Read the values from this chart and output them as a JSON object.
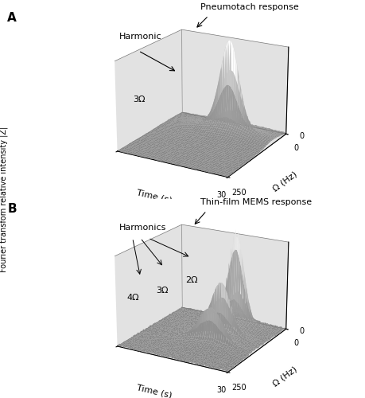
{
  "panel_A_label": "A",
  "panel_B_label": "B",
  "title_A": "Pneumotach response",
  "title_B": "Thin-film MEMS response",
  "xlabel": "Time (s)",
  "ylabel_freq": "Ω (Hz)",
  "zlabel": "Fourier transfom relative intensity |Z|",
  "time_max": 30,
  "freq_max": 250,
  "annotation_A_harmonic": "Harmonic",
  "annotation_A_3omega": "3Ω",
  "annotation_B_harmonics": "Harmonics",
  "annotation_B_4omega": "4Ω",
  "annotation_B_3omega": "3Ω",
  "annotation_B_2omega": "2Ω",
  "tick_0": "0",
  "tick_30": "30",
  "tick_250": "250",
  "elev": 20,
  "azim": -60
}
